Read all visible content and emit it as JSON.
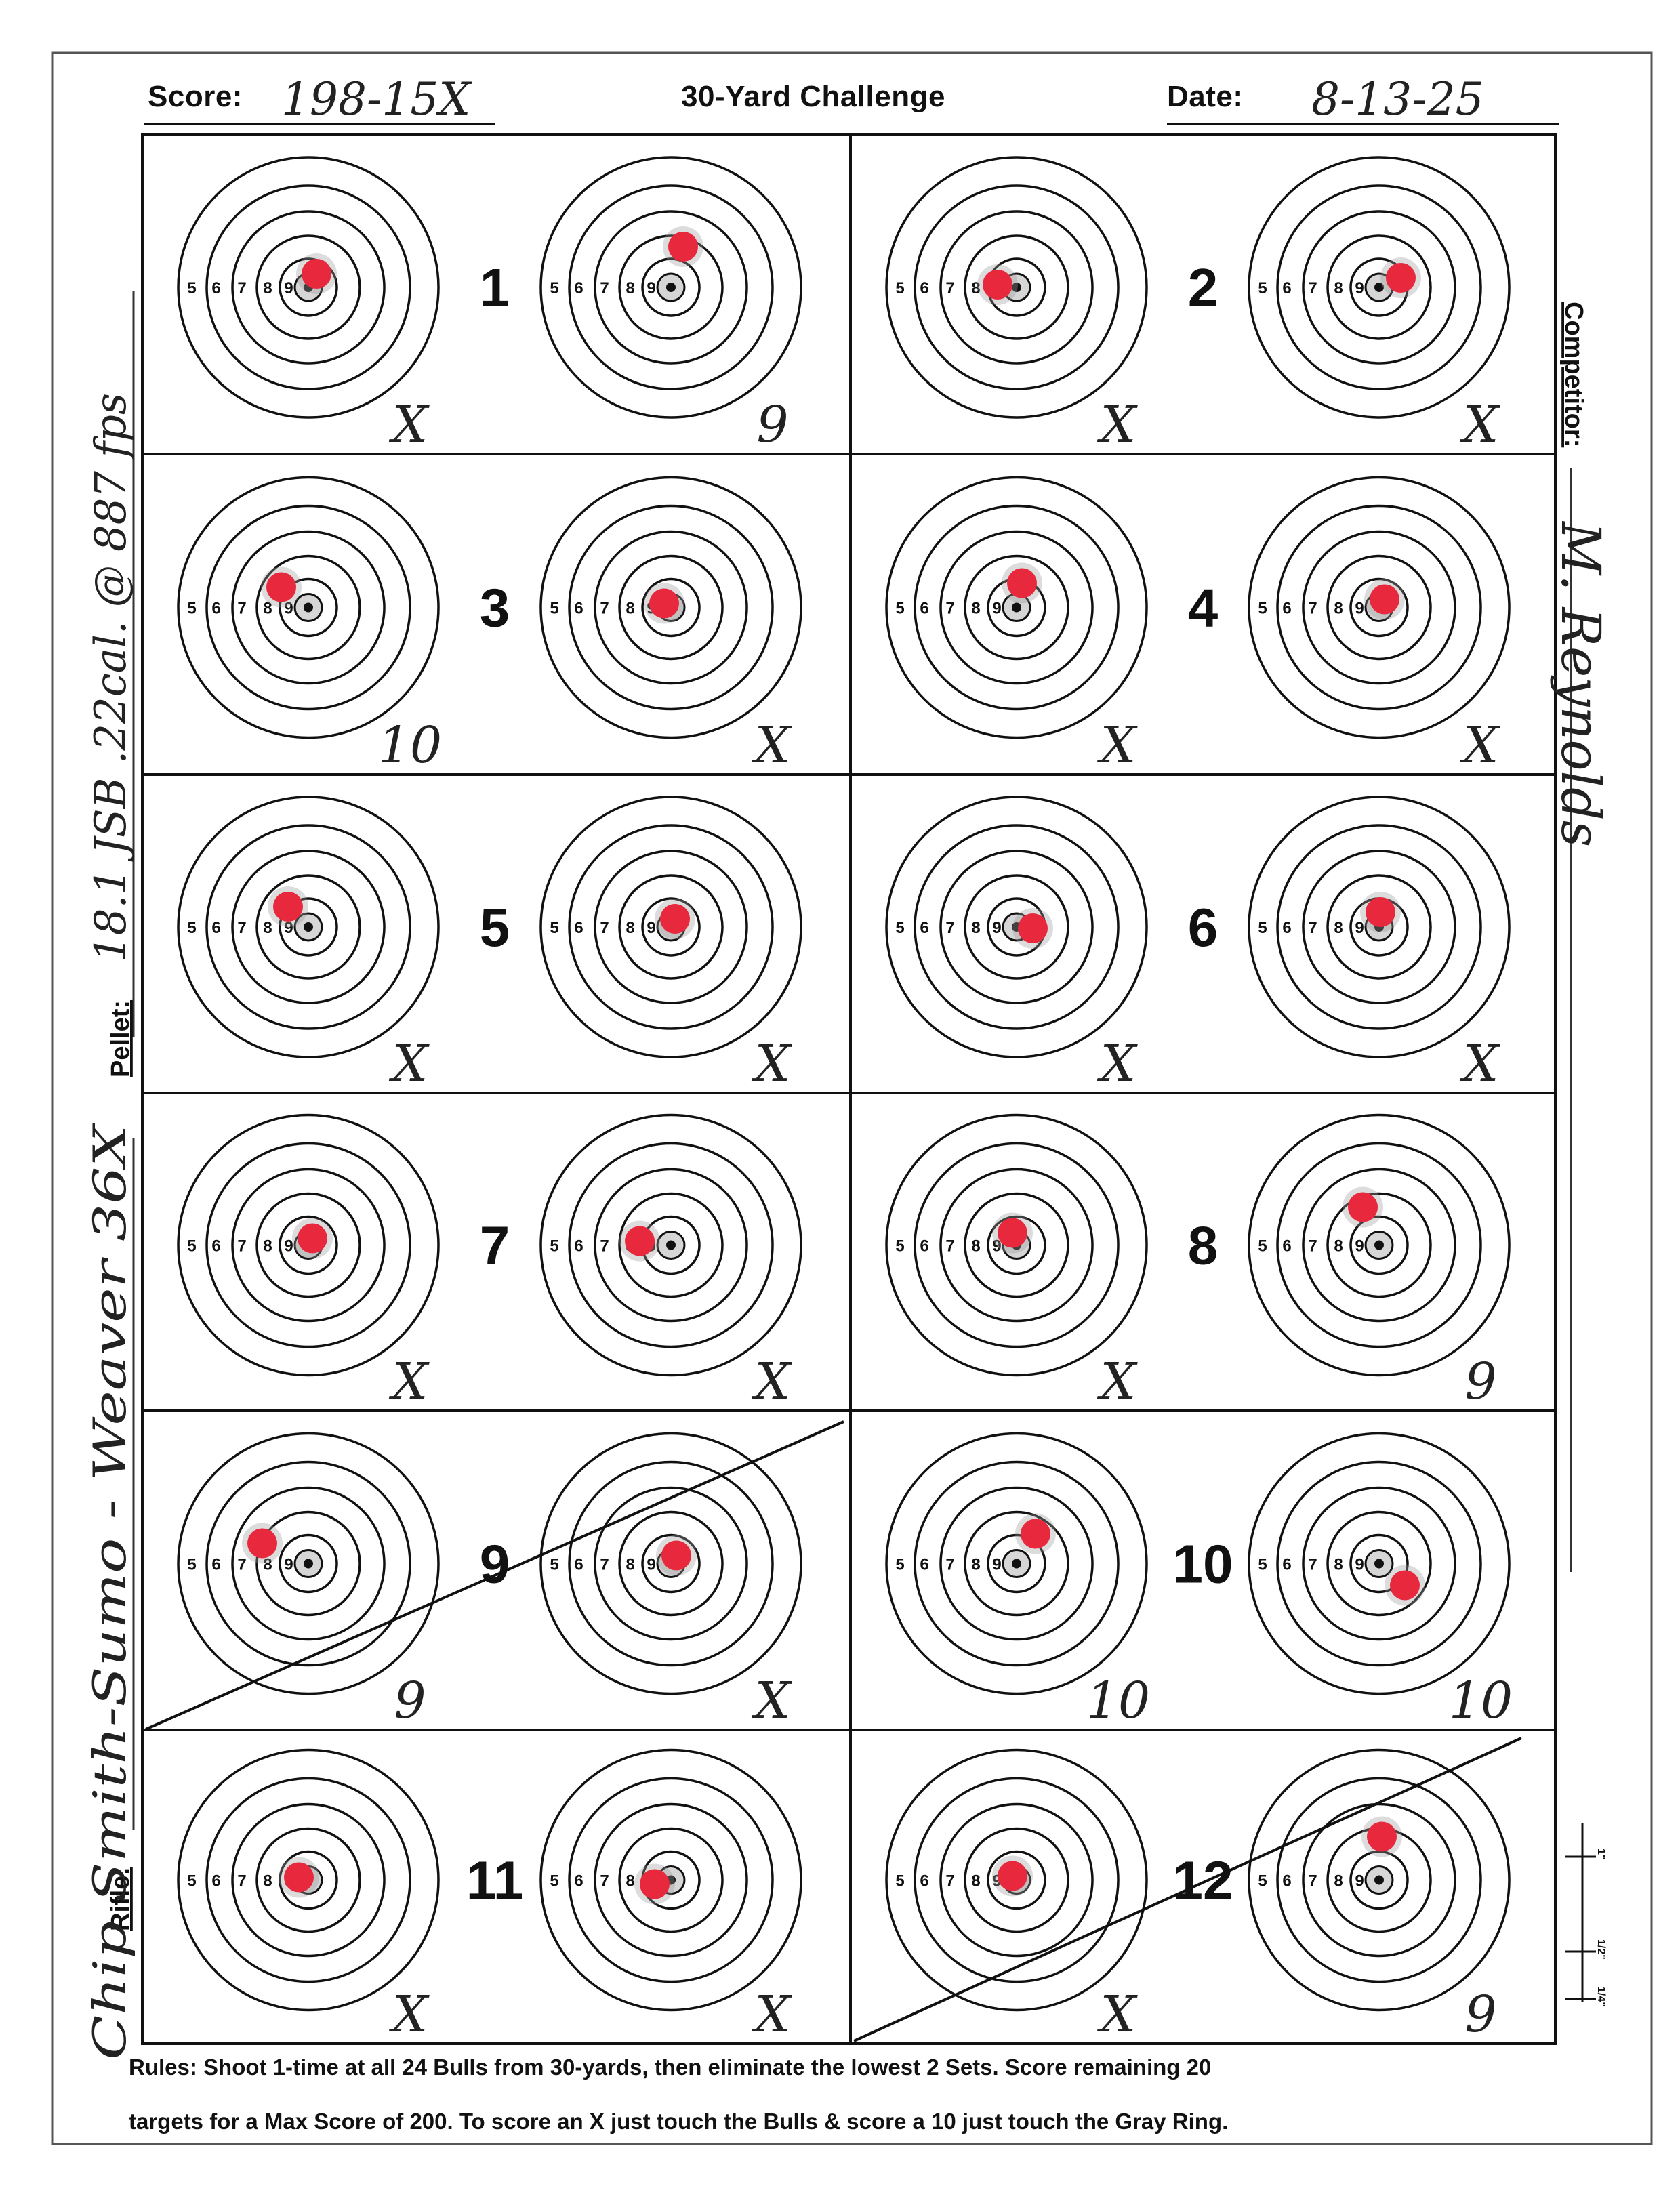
{
  "header": {
    "score_label": "Score:",
    "score_value": "198-15X",
    "title": "30-Yard Challenge",
    "date_label": "Date:",
    "date_value": "8-13-25"
  },
  "side_labels": {
    "competitor_label": "Competitor:",
    "competitor_value": "M. Reynolds",
    "pellet_label": "Pellet:",
    "pellet_value": "18.1 JSB .22cal. @ 887 fps",
    "rifle_label": "Rifle:",
    "rifle_value": "Chip Smith-Sumo - Weaver 36X"
  },
  "ring_labels": [
    "5",
    "6",
    "7",
    "8",
    "9"
  ],
  "sets": [
    {
      "number": "1",
      "left_score": "X",
      "right_score": "9"
    },
    {
      "number": "2",
      "left_score": "X",
      "right_score": "X"
    },
    {
      "number": "3",
      "left_score": "10",
      "right_score": "X"
    },
    {
      "number": "4",
      "left_score": "X",
      "right_score": "X"
    },
    {
      "number": "5",
      "left_score": "X",
      "right_score": "X"
    },
    {
      "number": "6",
      "left_score": "X",
      "right_score": "X"
    },
    {
      "number": "7",
      "left_score": "X",
      "right_score": "X"
    },
    {
      "number": "8",
      "left_score": "X",
      "right_score": "9"
    },
    {
      "number": "9",
      "left_score": "9",
      "right_score": "X",
      "eliminated": true
    },
    {
      "number": "10",
      "left_score": "10",
      "right_score": "10"
    },
    {
      "number": "11",
      "left_score": "X",
      "right_score": "X"
    },
    {
      "number": "12",
      "left_score": "X",
      "right_score": "9",
      "eliminated": true
    }
  ],
  "scale_labels": [
    "1\"",
    "1/2\"",
    "1/4\""
  ],
  "rules": {
    "line1": "Rules: Shoot 1-time at all 24 Bulls from 30-yards, then eliminate the lowest 2 Sets. Score remaining 20",
    "line2": "targets for a Max Score of 200. To score an X just touch the Bulls & score a 10 just touch the Gray Ring."
  },
  "colors": {
    "ink": "#111111",
    "hit": "#e8283c",
    "pen": "#222222"
  }
}
